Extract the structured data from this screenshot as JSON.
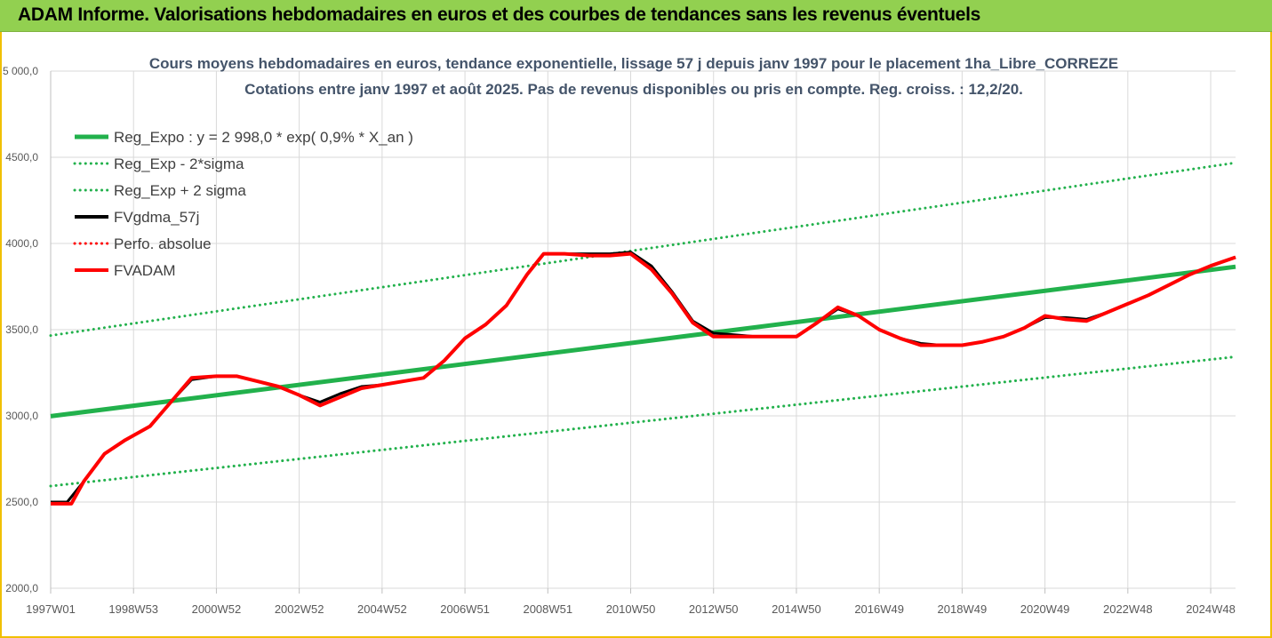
{
  "banner": {
    "title": "ADAM Informe. Valorisations hebdomadaires en euros et des courbes de tendances sans les revenus éventuels"
  },
  "colors": {
    "banner_bg": "#92d050",
    "frame": "#f0c000",
    "reg_expo": "#22b14c",
    "sigma": "#22b14c",
    "fvgdma": "#000000",
    "perfo": "#ff0000",
    "fvadam": "#ff0000"
  },
  "chart_data": {
    "type": "line",
    "title": "Cours moyens hebdomadaires en euros, tendance exponentielle, lissage 57 j depuis janv 1997  pour le placement 1ha_Libre_CORREZE",
    "subtitle": "Cotations entre janv 1997 et août 2025. Pas de revenus disponibles ou pris en compte. Reg. croiss. : 12,2/20.",
    "ylim": [
      2000,
      5000
    ],
    "xlim": [
      1997.0,
      2025.6
    ],
    "y_ticks": [
      {
        "value": 2000,
        "label": "2000,0"
      },
      {
        "value": 2500,
        "label": "2500,0"
      },
      {
        "value": 3000,
        "label": "3000,0"
      },
      {
        "value": 3500,
        "label": "3500,0"
      },
      {
        "value": 4000,
        "label": "4000,0"
      },
      {
        "value": 4500,
        "label": "4500,0"
      },
      {
        "value": 5000,
        "label": "5 000,0"
      }
    ],
    "x_ticks": [
      {
        "value": 1997.0,
        "label": "1997W01"
      },
      {
        "value": 1999.0,
        "label": "1998W53"
      },
      {
        "value": 2001.0,
        "label": "2000W52"
      },
      {
        "value": 2003.0,
        "label": "2002W52"
      },
      {
        "value": 2005.0,
        "label": "2004W52"
      },
      {
        "value": 2007.0,
        "label": "2006W51"
      },
      {
        "value": 2009.0,
        "label": "2008W51"
      },
      {
        "value": 2011.0,
        "label": "2010W50"
      },
      {
        "value": 2013.0,
        "label": "2012W50"
      },
      {
        "value": 2015.0,
        "label": "2014W50"
      },
      {
        "value": 2017.0,
        "label": "2016W49"
      },
      {
        "value": 2019.0,
        "label": "2018W49"
      },
      {
        "value": 2021.0,
        "label": "2020W49"
      },
      {
        "value": 2023.0,
        "label": "2022W48"
      },
      {
        "value": 2025.0,
        "label": "2024W48"
      }
    ],
    "legend_position": "top-left",
    "series": [
      {
        "name": "Reg_Expo : y = 2 998,0 * exp( 0,9% *  X_an )",
        "style": "solid",
        "width": 5,
        "color": "#22b14c",
        "x": [
          1997.0,
          2025.6
        ],
        "y": [
          2998,
          3865
        ]
      },
      {
        "name": "Reg_Exp - 2*sigma",
        "style": "dotted",
        "width": 3,
        "color": "#22b14c",
        "x": [
          1997.0,
          2025.6
        ],
        "y": [
          2593,
          3343
        ]
      },
      {
        "name": "Reg_Exp + 2 sigma",
        "style": "dotted",
        "width": 3,
        "color": "#22b14c",
        "x": [
          1997.0,
          2025.6
        ],
        "y": [
          3466,
          4468
        ]
      },
      {
        "name": "FVgdma_57j",
        "style": "solid",
        "width": 3,
        "color": "#000000",
        "x": [
          1997.0,
          1997.4,
          1997.8,
          1998.3,
          1998.8,
          1999.4,
          1999.9,
          2000.4,
          2001.0,
          2001.5,
          2002.0,
          2002.5,
          2003.0,
          2003.5,
          2004.0,
          2004.5,
          2005.0,
          2005.5,
          2006.0,
          2006.5,
          2007.0,
          2007.5,
          2008.0,
          2008.5,
          2008.9,
          2009.4,
          2010.0,
          2010.5,
          2011.0,
          2011.5,
          2012.0,
          2012.5,
          2013.0,
          2013.5,
          2014.0,
          2014.5,
          2015.0,
          2015.5,
          2016.0,
          2016.5,
          2017.0,
          2017.5,
          2018.0,
          2018.5,
          2019.0,
          2019.5,
          2020.0,
          2020.5,
          2021.0,
          2021.5,
          2022.0,
          2022.5,
          2023.0,
          2023.5,
          2024.0,
          2024.5,
          2025.0,
          2025.6
        ],
        "y": [
          2500,
          2500,
          2620,
          2780,
          2860,
          2940,
          3080,
          3210,
          3230,
          3230,
          3200,
          3170,
          3120,
          3080,
          3130,
          3170,
          3180,
          3200,
          3220,
          3320,
          3450,
          3530,
          3640,
          3820,
          3940,
          3940,
          3940,
          3940,
          3950,
          3870,
          3720,
          3550,
          3480,
          3470,
          3460,
          3460,
          3460,
          3540,
          3620,
          3580,
          3500,
          3450,
          3420,
          3410,
          3410,
          3430,
          3460,
          3510,
          3570,
          3570,
          3560,
          3600,
          3650,
          3700,
          3760,
          3820,
          3870,
          3920
        ]
      },
      {
        "name": "Perfo. absolue",
        "style": "dotted",
        "width": 3,
        "color": "#ff0000",
        "x": [],
        "y": []
      },
      {
        "name": "FVADAM",
        "style": "solid",
        "width": 4,
        "color": "#ff0000",
        "x": [
          1997.0,
          1997.5,
          1997.8,
          1998.3,
          1998.8,
          1999.4,
          1999.9,
          2000.4,
          2001.0,
          2001.5,
          2002.0,
          2002.5,
          2003.0,
          2003.5,
          2004.0,
          2004.5,
          2005.0,
          2005.5,
          2006.0,
          2006.5,
          2007.0,
          2007.5,
          2008.0,
          2008.5,
          2008.9,
          2009.4,
          2010.0,
          2010.5,
          2011.0,
          2011.5,
          2012.0,
          2012.5,
          2013.0,
          2013.5,
          2014.0,
          2014.5,
          2015.0,
          2015.5,
          2016.0,
          2016.5,
          2017.0,
          2017.5,
          2018.0,
          2018.5,
          2019.0,
          2019.5,
          2020.0,
          2020.5,
          2021.0,
          2021.5,
          2022.0,
          2022.5,
          2023.0,
          2023.5,
          2024.0,
          2024.5,
          2025.0,
          2025.6
        ],
        "y": [
          2490,
          2490,
          2620,
          2780,
          2860,
          2940,
          3080,
          3220,
          3230,
          3230,
          3200,
          3170,
          3120,
          3060,
          3110,
          3160,
          3180,
          3200,
          3220,
          3320,
          3450,
          3530,
          3640,
          3820,
          3940,
          3940,
          3930,
          3930,
          3940,
          3850,
          3710,
          3540,
          3460,
          3460,
          3460,
          3460,
          3460,
          3540,
          3630,
          3580,
          3500,
          3450,
          3410,
          3410,
          3410,
          3430,
          3460,
          3510,
          3580,
          3560,
          3550,
          3600,
          3650,
          3700,
          3760,
          3820,
          3870,
          3920
        ]
      }
    ]
  }
}
